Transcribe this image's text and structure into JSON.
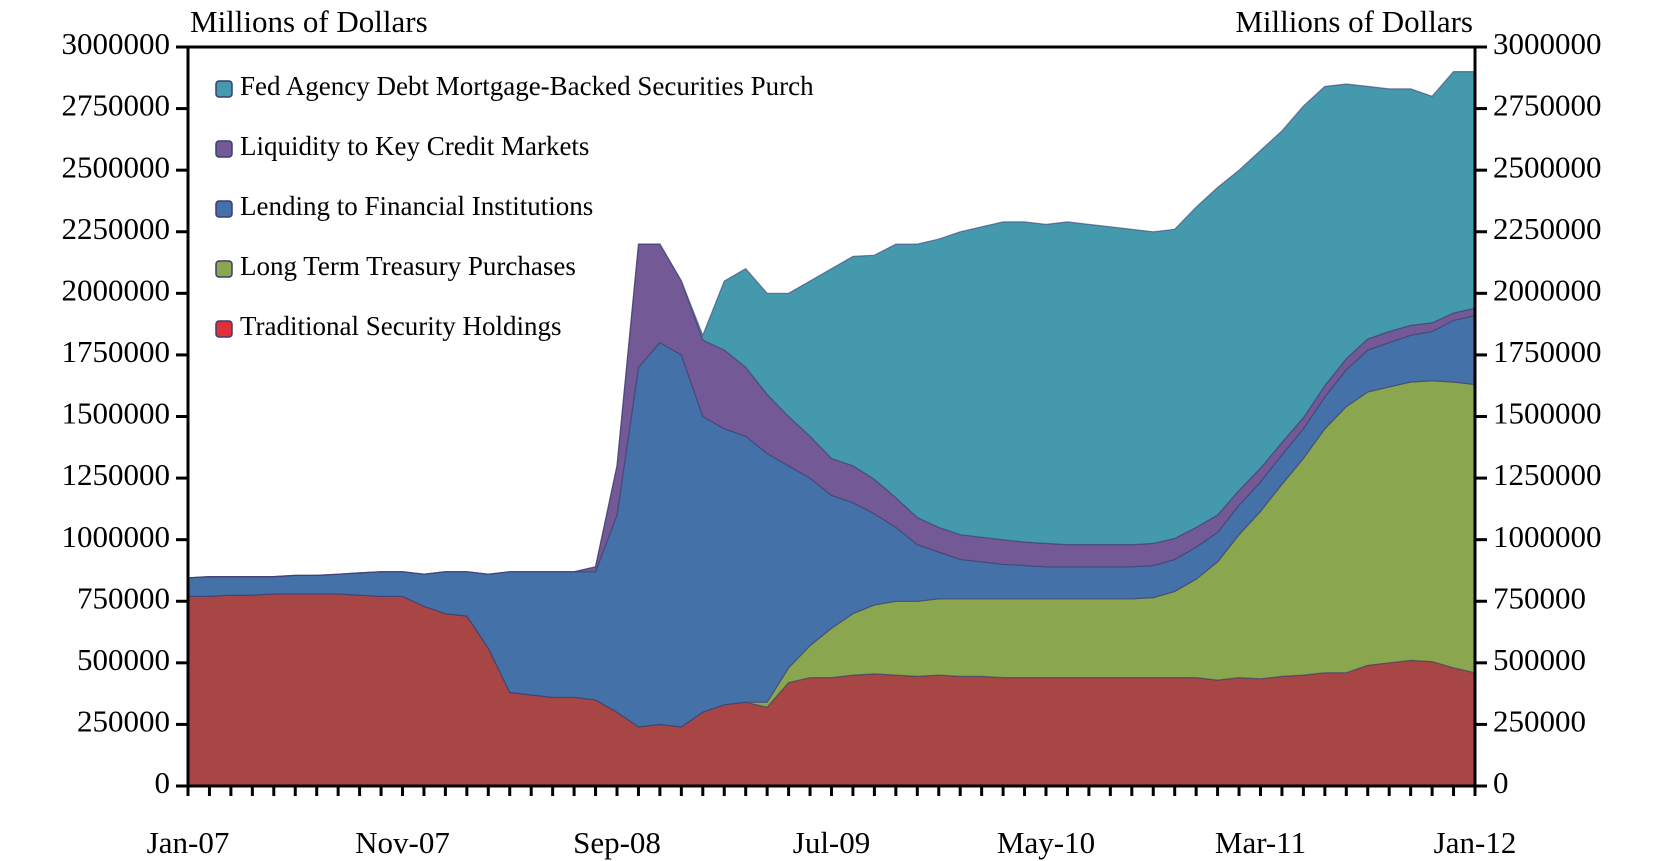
{
  "chart_data": {
    "type": "stacked_area",
    "y_label": "Millions of Dollars",
    "y2_label": "Millions of Dollars",
    "categories": [
      "Jan-07",
      null,
      null,
      null,
      null,
      null,
      null,
      null,
      null,
      null,
      "Nov-07",
      null,
      null,
      null,
      null,
      null,
      null,
      null,
      null,
      null,
      "Sep-08",
      null,
      null,
      null,
      null,
      null,
      null,
      null,
      null,
      null,
      "Jul-09",
      null,
      null,
      null,
      null,
      null,
      null,
      null,
      null,
      null,
      "May-10",
      null,
      null,
      null,
      null,
      null,
      null,
      null,
      null,
      null,
      "Mar-11",
      null,
      null,
      null,
      null,
      null,
      null,
      null,
      null,
      null,
      "Jan-12"
    ],
    "series": [
      {
        "name": "Traditional Security Holdings",
        "color": "#a84545",
        "legend_color": "#e0303a",
        "values": [
          770000,
          770000,
          775000,
          775000,
          780000,
          780000,
          780000,
          780000,
          775000,
          770000,
          770000,
          730000,
          700000,
          690000,
          560000,
          380000,
          370000,
          360000,
          360000,
          350000,
          300000,
          240000,
          250000,
          240000,
          300000,
          330000,
          340000,
          320000,
          420000,
          440000,
          440000,
          450000,
          455000,
          450000,
          445000,
          450000,
          445000,
          445000,
          440000,
          440000,
          440000,
          440000,
          440000,
          440000,
          440000,
          440000,
          440000,
          440000,
          430000,
          440000,
          435000,
          445000,
          450000,
          460000,
          460000,
          490000,
          500000,
          510000,
          505000,
          480000,
          460000
        ]
      },
      {
        "name": "Long Term Treasury Purchases",
        "color": "#8aa64e",
        "values": [
          0,
          0,
          0,
          0,
          0,
          0,
          0,
          0,
          0,
          0,
          0,
          0,
          0,
          0,
          0,
          0,
          0,
          0,
          0,
          0,
          0,
          0,
          0,
          0,
          0,
          0,
          0,
          20000,
          60000,
          130000,
          200000,
          250000,
          280000,
          300000,
          305000,
          310000,
          315000,
          315000,
          320000,
          320000,
          320000,
          320000,
          320000,
          320000,
          320000,
          325000,
          350000,
          400000,
          480000,
          580000,
          680000,
          780000,
          880000,
          990000,
          1080000,
          1110000,
          1120000,
          1130000,
          1140000,
          1160000,
          1170000
        ]
      },
      {
        "name": "Lending to Financial Institutions",
        "color": "#4471a8",
        "values": [
          75000,
          80000,
          75000,
          75000,
          70000,
          75000,
          75000,
          80000,
          90000,
          100000,
          100000,
          130000,
          170000,
          180000,
          300000,
          490000,
          500000,
          510000,
          510000,
          520000,
          800000,
          1460000,
          1550000,
          1510000,
          1200000,
          1120000,
          1080000,
          1010000,
          820000,
          680000,
          540000,
          450000,
          370000,
          300000,
          230000,
          190000,
          160000,
          150000,
          140000,
          135000,
          130000,
          130000,
          130000,
          130000,
          130000,
          130000,
          130000,
          130000,
          120000,
          120000,
          120000,
          120000,
          120000,
          130000,
          150000,
          170000,
          180000,
          190000,
          200000,
          250000,
          280000
        ]
      },
      {
        "name": "Liquidity to Key Credit Markets",
        "color": "#735a96",
        "values": [
          0,
          0,
          0,
          0,
          0,
          0,
          0,
          0,
          0,
          0,
          0,
          0,
          0,
          0,
          0,
          0,
          0,
          0,
          0,
          20000,
          200000,
          500000,
          400000,
          300000,
          310000,
          320000,
          280000,
          240000,
          200000,
          170000,
          150000,
          150000,
          140000,
          120000,
          110000,
          100000,
          100000,
          100000,
          100000,
          95000,
          95000,
          90000,
          90000,
          90000,
          90000,
          90000,
          85000,
          80000,
          70000,
          60000,
          55000,
          50000,
          45000,
          45000,
          45000,
          45000,
          45000,
          40000,
          35000,
          30000,
          30000
        ]
      },
      {
        "name": "Fed Agency Debt Mortgage-Backed Securities Purch",
        "color": "#4499ad",
        "values": [
          0,
          0,
          0,
          0,
          0,
          0,
          0,
          0,
          0,
          0,
          0,
          0,
          0,
          0,
          0,
          0,
          0,
          0,
          0,
          0,
          0,
          0,
          0,
          0,
          20000,
          280000,
          400000,
          410000,
          500000,
          630000,
          770000,
          850000,
          910000,
          1030000,
          1110000,
          1170000,
          1230000,
          1260000,
          1290000,
          1300000,
          1295000,
          1310000,
          1300000,
          1290000,
          1280000,
          1265000,
          1255000,
          1300000,
          1330000,
          1300000,
          1290000,
          1265000,
          1265000,
          1215000,
          1115000,
          1025000,
          985000,
          960000,
          920000,
          980000,
          960000
        ]
      }
    ],
    "ylim": [
      0,
      3000000
    ],
    "yticks": [
      0,
      250000,
      500000,
      750000,
      1000000,
      1250000,
      1500000,
      1750000,
      2000000,
      2250000,
      2500000,
      2750000,
      3000000
    ],
    "y2lim": [
      0,
      3000000
    ],
    "y2ticks": [
      0,
      250000,
      500000,
      750000,
      1000000,
      1250000,
      1500000,
      1750000,
      2000000,
      2250000,
      2500000,
      2750000,
      3000000
    ],
    "legend": "top-left"
  }
}
